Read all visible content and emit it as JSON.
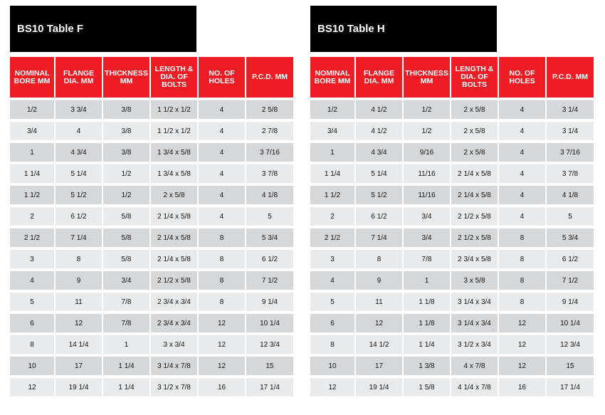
{
  "columns": [
    "NOMINAL BORE MM",
    "FLANGE DIA. MM",
    "THICKNESS MM",
    "LENGTH & DIA. OF BOLTS",
    "NO. OF HOLES",
    "P.C.D. MM"
  ],
  "tables": [
    {
      "title": "BS10 Table F",
      "rows": [
        [
          "1/2",
          "3 3/4",
          "3/8",
          "1 1/2 x 1/2",
          "4",
          "2 5/8"
        ],
        [
          "3/4",
          "4",
          "3/8",
          "1 1/2 x 1/2",
          "4",
          "2 7/8"
        ],
        [
          "1",
          "4 3/4",
          "3/8",
          "1 3/4 x 5/8",
          "4",
          "3  7/16"
        ],
        [
          "1 1/4",
          "5 1/4",
          "1/2",
          "1 3/4 x 5/8",
          "4",
          "3 7/8"
        ],
        [
          "1 1/2",
          "5 1/2",
          "1/2",
          "2 x 5/8",
          "4",
          "4 1/8"
        ],
        [
          "2",
          "6 1/2",
          "5/8",
          "2 1/4 x 5/8",
          "4",
          "5"
        ],
        [
          "2 1/2",
          "7 1/4",
          "5/8",
          "2 1/4 x 5/8",
          "8",
          "5 3/4"
        ],
        [
          "3",
          "8",
          "5/8",
          "2 1/4 x 5/8",
          "8",
          "6 1/2"
        ],
        [
          "4",
          "9",
          "3/4",
          "2 1/2 x 5/8",
          "8",
          "7 1/2"
        ],
        [
          "5",
          "11",
          "7/8",
          "2 3/4 x 3/4",
          "8",
          "9 1/4"
        ],
        [
          "6",
          "12",
          "7/8",
          "2 3/4 x 3/4",
          "12",
          "10 1/4"
        ],
        [
          "8",
          "14 1/4",
          "1",
          "3 x 3/4",
          "12",
          "12 3/4"
        ],
        [
          "10",
          "17",
          "1  1/4",
          "3 1/4 x 7/8",
          "12",
          "15"
        ],
        [
          "12",
          "19 1/4",
          "1  1/4",
          "3 1/2 x 7/8",
          "16",
          "17 1/4"
        ]
      ]
    },
    {
      "title": "BS10 Table H",
      "rows": [
        [
          "1/2",
          "4 1/2",
          "1/2",
          "2 x 5/8",
          "4",
          "3 1/4"
        ],
        [
          "3/4",
          "4 1/2",
          "1/2",
          "2 x 5/8",
          "4",
          "3 1/4"
        ],
        [
          "1",
          "4 3/4",
          "9/16",
          "2 x 5/8",
          "4",
          "3  7/16"
        ],
        [
          "1 1/4",
          "5 1/4",
          "11/16",
          "2 1/4 x 5/8",
          "4",
          "3 7/8"
        ],
        [
          "1 1/2",
          "5 1/2",
          "11/16",
          "2 1/4 x 5/8",
          "4",
          "4 1/8"
        ],
        [
          "2",
          "6 1/2",
          "3/4",
          "2 1/2 x 5/8",
          "4",
          "5"
        ],
        [
          "2 1/2",
          "7 1/4",
          "3/4",
          "2 1/2 x 5/8",
          "8",
          "5 3/4"
        ],
        [
          "3",
          "8",
          "7/8",
          "2 3/4 x 5/8",
          "8",
          "6 1/2"
        ],
        [
          "4",
          "9",
          "1",
          "3 x 5/8",
          "8",
          "7 1/2"
        ],
        [
          "5",
          "11",
          "1  1/8",
          "3 1/4 x 3/4",
          "8",
          "9 1/4"
        ],
        [
          "6",
          "12",
          "1  1/8",
          "3 1/4 x 3/4",
          "12",
          "10 1/4"
        ],
        [
          "8",
          "14 1/2",
          "1  1/4",
          "3 1/2 x 3/4",
          "12",
          "12 3/4"
        ],
        [
          "10",
          "17",
          "1  3/8",
          "4 x 7/8",
          "12",
          "15"
        ],
        [
          "12",
          "19 1/4",
          "1  5/8",
          "4 1/4 x 7/8",
          "16",
          "17 1/4"
        ]
      ]
    }
  ],
  "colors": {
    "header": "#ee1c25",
    "title_bar": "#000000",
    "row_dark": "#d6d7d9",
    "row_light": "#e9eaeb"
  }
}
